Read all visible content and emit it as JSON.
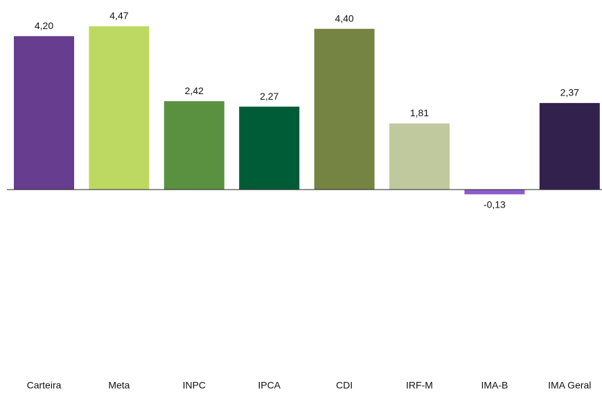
{
  "chart_data": {
    "type": "bar",
    "categories": [
      "Carteira",
      "Meta",
      "INPC",
      "IPCA",
      "CDI",
      "IRF-M",
      "IMA-B",
      "IMA Geral"
    ],
    "values": [
      4.2,
      4.47,
      2.42,
      2.27,
      4.4,
      1.81,
      -0.13,
      2.37
    ],
    "value_labels": [
      "4,20",
      "4,47",
      "2,42",
      "2,27",
      "4,40",
      "1,81",
      "-0,13",
      "2,37"
    ],
    "colors": [
      "#663d8f",
      "#bdd962",
      "#5a9140",
      "#005c37",
      "#758442",
      "#bfc99d",
      "#8c5ccc",
      "#33214d"
    ],
    "ylim": [
      -5,
      5
    ]
  }
}
